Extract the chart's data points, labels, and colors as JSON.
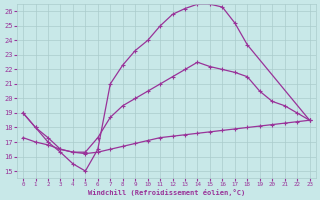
{
  "xlabel": "Windchill (Refroidissement éolien,°C)",
  "xlim": [
    -0.5,
    23.5
  ],
  "ylim": [
    14.5,
    26.5
  ],
  "xticks": [
    0,
    1,
    2,
    3,
    4,
    5,
    6,
    7,
    8,
    9,
    10,
    11,
    12,
    13,
    14,
    15,
    16,
    17,
    18,
    19,
    20,
    21,
    22,
    23
  ],
  "yticks": [
    15,
    16,
    17,
    18,
    19,
    20,
    21,
    22,
    23,
    24,
    25,
    26
  ],
  "background_color": "#c8e8e8",
  "grid_color": "#aacccc",
  "line_color": "#993399",
  "line_width": 0.9,
  "marker": "+",
  "marker_size": 3,
  "curve1_x": [
    0,
    1,
    2,
    3,
    4,
    5,
    6,
    7,
    8,
    9,
    10,
    11,
    12,
    13,
    14,
    15,
    16,
    17,
    18,
    23
  ],
  "curve1_y": [
    19.0,
    18.0,
    17.0,
    16.3,
    15.5,
    15.0,
    16.5,
    21.0,
    22.3,
    23.3,
    24.0,
    25.0,
    25.8,
    26.2,
    26.5,
    26.5,
    26.3,
    25.2,
    23.7,
    18.5
  ],
  "curve2_x": [
    0,
    1,
    2,
    3,
    4,
    5,
    6,
    7,
    8,
    9,
    10,
    11,
    12,
    13,
    14,
    15,
    16,
    17,
    18,
    19,
    20,
    21,
    22,
    23
  ],
  "curve2_y": [
    19.0,
    18.0,
    17.3,
    16.5,
    16.3,
    16.3,
    17.3,
    18.7,
    19.5,
    20.0,
    20.5,
    21.0,
    21.5,
    22.0,
    22.5,
    22.2,
    22.0,
    21.8,
    21.5,
    20.5,
    19.8,
    19.5,
    19.0,
    18.5
  ],
  "curve3_x": [
    0,
    1,
    2,
    3,
    4,
    5,
    6,
    7,
    8,
    9,
    10,
    11,
    12,
    13,
    14,
    15,
    16,
    17,
    18,
    19,
    20,
    21,
    22,
    23
  ],
  "curve3_y": [
    17.3,
    17.0,
    16.8,
    16.5,
    16.3,
    16.2,
    16.3,
    16.5,
    16.7,
    16.9,
    17.1,
    17.3,
    17.4,
    17.5,
    17.6,
    17.7,
    17.8,
    17.9,
    18.0,
    18.1,
    18.2,
    18.3,
    18.4,
    18.5
  ]
}
